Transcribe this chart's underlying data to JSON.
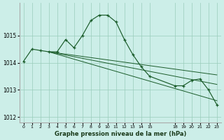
{
  "title": "Graphe pression niveau de la mer (hPa)",
  "bg_color": "#cceee8",
  "grid_color": "#99ccbb",
  "line_color": "#1a5c2a",
  "xlim": [
    -0.5,
    23.5
  ],
  "ylim": [
    1011.8,
    1016.2
  ],
  "yticks": [
    1012,
    1013,
    1014,
    1015
  ],
  "xticks": [
    0,
    1,
    2,
    3,
    4,
    5,
    6,
    7,
    8,
    9,
    10,
    11,
    12,
    13,
    14,
    15,
    18,
    19,
    20,
    21,
    22,
    23
  ],
  "main_x": [
    0,
    1,
    2,
    3,
    4,
    5,
    6,
    7,
    8,
    9,
    10,
    11,
    12,
    13,
    14,
    15,
    18,
    19,
    20,
    21,
    22,
    23
  ],
  "main_y": [
    1014.05,
    1014.5,
    1014.45,
    1014.4,
    1014.4,
    1014.85,
    1014.55,
    1015.0,
    1015.55,
    1015.75,
    1015.75,
    1015.5,
    1014.85,
    1014.3,
    1013.85,
    1013.5,
    1013.15,
    1013.15,
    1013.35,
    1013.4,
    1013.0,
    1012.45
  ],
  "straight_lines": [
    {
      "x": [
        3,
        23
      ],
      "y": [
        1014.4,
        1013.55
      ]
    },
    {
      "x": [
        3,
        23
      ],
      "y": [
        1014.4,
        1013.2
      ]
    },
    {
      "x": [
        3,
        23
      ],
      "y": [
        1014.4,
        1012.6
      ]
    }
  ]
}
